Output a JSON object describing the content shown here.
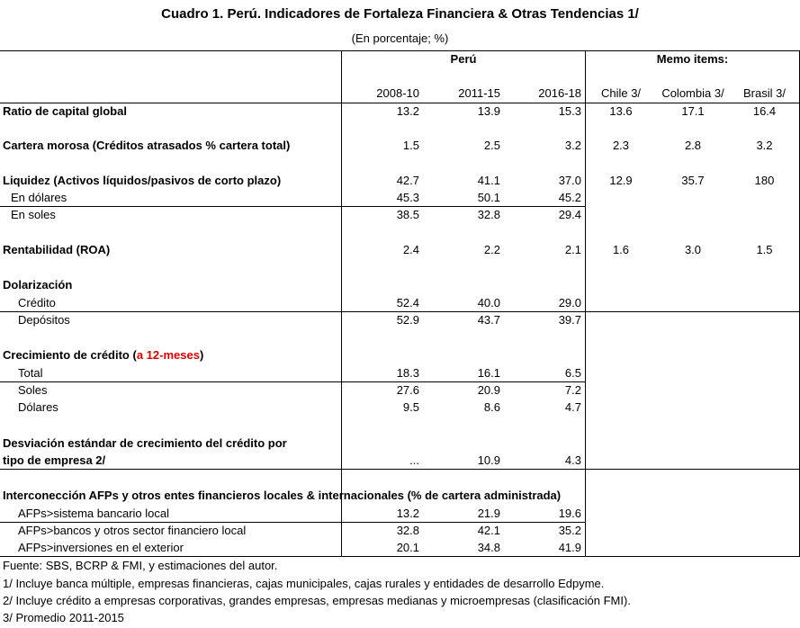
{
  "title": "Cuadro 1. Perú. Indicadores de Fortaleza Financiera & Otras Tendencias 1/",
  "subtitle": "(En porcentaje; %)",
  "headers": {
    "peru": "Perú",
    "memo": "Memo items:",
    "cols": [
      "2008-10",
      "2011-15",
      "2016-18",
      "Chile 3/",
      "Colombia 3/",
      "Brasil 3/"
    ]
  },
  "rows": {
    "capital": {
      "label": "Ratio de capital global",
      "v": [
        "13.2",
        "13.9",
        "15.3",
        "13.6",
        "17.1",
        "16.4"
      ]
    },
    "morosa": {
      "label": "Cartera morosa (Créditos atrasados % cartera total)",
      "v": [
        "1.5",
        "2.5",
        "3.2",
        "2.3",
        "2.8",
        "3.2"
      ]
    },
    "liquidez": {
      "label": "Liquidez (Activos líquidos/pasivos de corto plazo)",
      "v": [
        "42.7",
        "41.1",
        "37.0",
        "12.9",
        "35.7",
        "180"
      ]
    },
    "liq_dolares": {
      "label": "En dólares",
      "v": [
        "45.3",
        "50.1",
        "45.2"
      ]
    },
    "liq_soles": {
      "label": "En soles",
      "v": [
        "38.5",
        "32.8",
        "29.4"
      ]
    },
    "roa": {
      "label": "Rentabilidad (ROA)",
      "v": [
        "2.4",
        "2.2",
        "2.1",
        "1.6",
        "3.0",
        "1.5"
      ]
    },
    "dolarizacion": {
      "label": "Dolarización"
    },
    "credito": {
      "label": "Crédito",
      "v": [
        "52.4",
        "40.0",
        "29.0"
      ]
    },
    "depositos": {
      "label": "Depósitos",
      "v": [
        "52.9",
        "43.7",
        "39.7"
      ]
    },
    "crecimiento": {
      "label": "Crecimiento de crédito (",
      "label_red": "a 12-meses",
      "label_end": ")"
    },
    "total": {
      "label": "Total",
      "v": [
        "18.3",
        "16.1",
        "6.5"
      ]
    },
    "soles": {
      "label": "Soles",
      "v": [
        "27.6",
        "20.9",
        "7.2"
      ]
    },
    "dolares": {
      "label": "Dólares",
      "v": [
        "9.5",
        "8.6",
        "4.7"
      ]
    },
    "desviacion": {
      "label1": "Desviación estándar de crecimiento del crédito por",
      "label2": "tipo de empresa 2/",
      "v": [
        "...",
        "10.9",
        "4.3"
      ]
    },
    "interconexion": {
      "label": "Interconección AFPs y otros entes financieros locales & internacionales (% de cartera administrada)"
    },
    "afp_banc": {
      "label": "AFPs>sistema bancario local",
      "v": [
        "13.2",
        "21.9",
        "19.6"
      ]
    },
    "afp_otros": {
      "label": "AFPs>bancos y otros sector financiero local",
      "v": [
        "32.8",
        "42.1",
        "35.2"
      ]
    },
    "afp_ext": {
      "label": "AFPs>inversiones en el exterior",
      "v": [
        "20.1",
        "34.8",
        "41.9"
      ]
    }
  },
  "footnotes": [
    "Fuente: SBS, BCRP & FMI, y estimaciones del autor.",
    "1/ Incluye banca múltiple, empresas financieras, cajas municipales, cajas rurales y entidades de desarrollo Edpyme.",
    "2/ Incluye crédito a empresas corporativas, grandes empresas, empresas medianas y microempresas (clasificación FMI).",
    "3/ Promedio 2011-2015"
  ]
}
